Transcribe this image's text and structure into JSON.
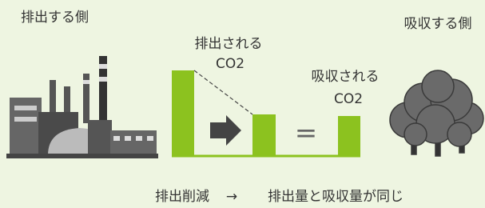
{
  "left_label": "排出する側",
  "right_label": "吸収する側",
  "emitted": {
    "line1": "排出される",
    "line2": "CO2"
  },
  "absorbed": {
    "line1": "吸収される",
    "line2": "CO2"
  },
  "equals": "=",
  "caption": {
    "left": "排出削減",
    "arrow": "→",
    "right": "排出量と吸収量が同じ"
  }
}
